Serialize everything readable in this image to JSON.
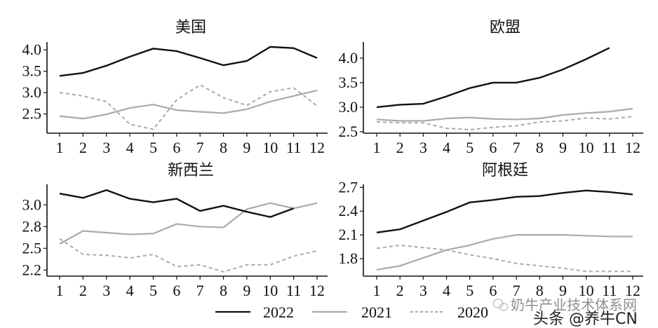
{
  "chart_data": [
    {
      "type": "line",
      "title": "美国",
      "x": [
        1,
        2,
        3,
        4,
        5,
        6,
        7,
        8,
        9,
        10,
        11,
        12
      ],
      "yticks": [
        2.5,
        3.0,
        3.5,
        4.0
      ],
      "ytick_labels": [
        "2.5",
        "3.0",
        "3.5",
        "4.0"
      ],
      "ylim": [
        2.05,
        4.15
      ],
      "series": [
        {
          "name": "2022",
          "values": [
            3.39,
            3.46,
            3.63,
            3.84,
            4.03,
            3.97,
            3.81,
            3.64,
            3.74,
            4.07,
            4.04,
            3.81
          ]
        },
        {
          "name": "2021",
          "values": [
            2.45,
            2.39,
            2.49,
            2.64,
            2.72,
            2.59,
            2.55,
            2.52,
            2.61,
            2.79,
            2.92,
            3.05
          ]
        },
        {
          "name": "2020",
          "values": [
            3.0,
            2.92,
            2.79,
            2.26,
            2.14,
            2.83,
            3.18,
            2.88,
            2.7,
            3.02,
            3.11,
            2.69
          ]
        }
      ]
    },
    {
      "type": "line",
      "title": "欧盟",
      "x": [
        1,
        2,
        3,
        4,
        5,
        6,
        7,
        8,
        9,
        10,
        11,
        12
      ],
      "yticks": [
        2.5,
        3.0,
        3.5,
        4.0
      ],
      "ytick_labels": [
        "2.5",
        "3.0",
        "3.5",
        "4.0"
      ],
      "ylim": [
        2.47,
        4.3
      ],
      "series": [
        {
          "name": "2022",
          "values": [
            3.0,
            3.05,
            3.07,
            3.22,
            3.39,
            3.5,
            3.5,
            3.6,
            3.77,
            3.98,
            4.21,
            null
          ]
        },
        {
          "name": "2021",
          "values": [
            2.75,
            2.72,
            2.72,
            2.77,
            2.79,
            2.76,
            2.75,
            2.77,
            2.84,
            2.88,
            2.91,
            2.97
          ]
        },
        {
          "name": "2020",
          "values": [
            2.7,
            2.68,
            2.68,
            2.57,
            2.54,
            2.59,
            2.62,
            2.7,
            2.72,
            2.78,
            2.76,
            2.81
          ]
        }
      ]
    },
    {
      "type": "line",
      "title": "新西兰",
      "x": [
        1,
        2,
        3,
        4,
        5,
        6,
        7,
        8,
        9,
        10,
        11,
        12
      ],
      "yticks": [
        2.25,
        2.5,
        2.75,
        3.0
      ],
      "ytick_labels": [
        "2.2",
        "2.5",
        "2.8",
        "3.0"
      ],
      "ylim": [
        2.18,
        3.22
      ],
      "series": [
        {
          "name": "2022",
          "values": [
            3.13,
            3.08,
            3.17,
            3.07,
            3.03,
            3.07,
            2.93,
            2.99,
            2.92,
            2.86,
            2.96,
            null
          ]
        },
        {
          "name": "2021",
          "values": [
            2.55,
            2.7,
            2.68,
            2.66,
            2.67,
            2.78,
            2.75,
            2.74,
            2.95,
            3.02,
            2.96,
            3.02
          ]
        },
        {
          "name": "2020",
          "values": [
            2.61,
            2.43,
            2.42,
            2.39,
            2.43,
            2.29,
            2.31,
            2.23,
            2.31,
            2.31,
            2.41,
            2.47
          ]
        }
      ]
    },
    {
      "type": "line",
      "title": "阿根廷",
      "x": [
        1,
        2,
        3,
        4,
        5,
        6,
        7,
        8,
        9,
        10,
        11,
        12
      ],
      "yticks": [
        1.8,
        2.1,
        2.4,
        2.7
      ],
      "ytick_labels": [
        "1.8",
        "2.1",
        "2.4",
        "2.7"
      ],
      "ylim": [
        1.58,
        2.72
      ],
      "series": [
        {
          "name": "2022",
          "values": [
            2.13,
            2.17,
            2.28,
            2.39,
            2.51,
            2.54,
            2.58,
            2.59,
            2.63,
            2.66,
            2.64,
            2.61
          ]
        },
        {
          "name": "2021",
          "values": [
            1.66,
            1.71,
            1.81,
            1.91,
            1.97,
            2.05,
            2.1,
            2.1,
            2.1,
            2.09,
            2.08,
            2.08
          ]
        },
        {
          "name": "2020",
          "values": [
            1.93,
            1.97,
            1.94,
            1.91,
            1.85,
            1.8,
            1.74,
            1.71,
            1.68,
            1.64,
            1.64,
            1.64
          ]
        }
      ]
    }
  ],
  "legend": {
    "position": "bottom",
    "items": [
      {
        "label": "2022",
        "color": "#111111",
        "style": "solid"
      },
      {
        "label": "2021",
        "color": "#aaaaaa",
        "style": "solid"
      },
      {
        "label": "2020",
        "color": "#aaaaaa",
        "style": "dashed"
      }
    ]
  },
  "watermark": {
    "line1": "奶牛产业技术体系网",
    "line2": "头条 @养牛CN",
    "icon": "wechat-icon"
  }
}
